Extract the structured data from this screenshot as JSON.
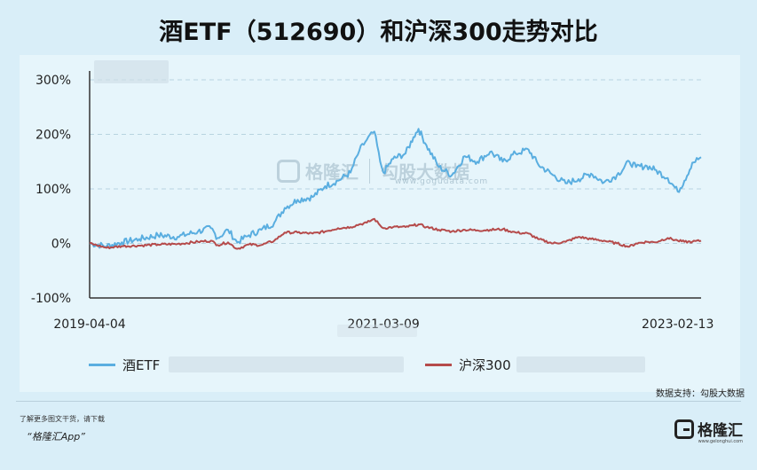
{
  "title": "酒ETF（512690）和沪深300走势对比",
  "source": "数据支持：勾股大数据",
  "footer_line1": "了解更多图文干货，请下载",
  "footer_line2": "“格隆汇App”",
  "logo_text": "格隆汇",
  "logo_sub": "www.gelonghui.com",
  "watermark": {
    "brand": "格隆汇",
    "brand2": "勾股大数据",
    "url": "www.gogudata.com"
  },
  "colors": {
    "etf": "#5aaee0",
    "hs300": "#b54b4b",
    "grid": "#b8d4e0"
  },
  "chart_data": {
    "type": "line",
    "x_ticks": [
      "2019-04-04",
      "2021-03-09",
      "2023-02-13"
    ],
    "y_ticks": [
      "300%",
      "200%",
      "100%",
      "0%",
      "-100%"
    ],
    "ylim": [
      -100,
      300
    ],
    "xlim": [
      "2019-04-04",
      "2023-04-10"
    ],
    "grid": true,
    "legend_position": "bottom",
    "series": [
      {
        "name": "酒ETF",
        "points": [
          [
            "2019-04-04",
            0
          ],
          [
            "2019-05-15",
            -5
          ],
          [
            "2019-06-20",
            2
          ],
          [
            "2019-08-01",
            8
          ],
          [
            "2019-09-15",
            15
          ],
          [
            "2019-11-01",
            12
          ],
          [
            "2019-12-20",
            22
          ],
          [
            "2020-01-20",
            28
          ],
          [
            "2020-02-05",
            10
          ],
          [
            "2020-03-01",
            25
          ],
          [
            "2020-03-23",
            2
          ],
          [
            "2020-04-20",
            15
          ],
          [
            "2020-05-20",
            25
          ],
          [
            "2020-06-20",
            38
          ],
          [
            "2020-07-15",
            65
          ],
          [
            "2020-08-15",
            80
          ],
          [
            "2020-09-20",
            85
          ],
          [
            "2020-10-20",
            105
          ],
          [
            "2020-11-20",
            115
          ],
          [
            "2020-12-20",
            130
          ],
          [
            "2021-01-10",
            170
          ],
          [
            "2021-01-28",
            190
          ],
          [
            "2021-02-15",
            205
          ],
          [
            "2021-03-01",
            150
          ],
          [
            "2021-03-09",
            130
          ],
          [
            "2021-04-01",
            155
          ],
          [
            "2021-05-01",
            165
          ],
          [
            "2021-05-20",
            195
          ],
          [
            "2021-06-01",
            210
          ],
          [
            "2021-06-20",
            180
          ],
          [
            "2021-07-20",
            140
          ],
          [
            "2021-08-20",
            125
          ],
          [
            "2021-09-20",
            160
          ],
          [
            "2021-10-20",
            150
          ],
          [
            "2021-11-20",
            168
          ],
          [
            "2021-12-20",
            150
          ],
          [
            "2022-01-20",
            165
          ],
          [
            "2022-02-20",
            172
          ],
          [
            "2022-03-15",
            145
          ],
          [
            "2022-04-20",
            125
          ],
          [
            "2022-05-20",
            110
          ],
          [
            "2022-06-20",
            118
          ],
          [
            "2022-07-20",
            128
          ],
          [
            "2022-08-20",
            112
          ],
          [
            "2022-09-20",
            125
          ],
          [
            "2022-10-20",
            150
          ],
          [
            "2022-11-05",
            140
          ],
          [
            "2022-12-01",
            142
          ],
          [
            "2022-12-20",
            135
          ],
          [
            "2023-01-20",
            120
          ],
          [
            "2023-02-13",
            95
          ],
          [
            "2023-03-01",
            115
          ],
          [
            "2023-03-20",
            148
          ],
          [
            "2023-04-10",
            158
          ]
        ]
      },
      {
        "name": "沪深300",
        "points": [
          [
            "2019-04-04",
            0
          ],
          [
            "2019-05-15",
            -8
          ],
          [
            "2019-06-20",
            -5
          ],
          [
            "2019-08-01",
            -4
          ],
          [
            "2019-09-15",
            -2
          ],
          [
            "2019-11-01",
            -1
          ],
          [
            "2019-12-20",
            3
          ],
          [
            "2020-01-20",
            5
          ],
          [
            "2020-02-05",
            -3
          ],
          [
            "2020-03-01",
            2
          ],
          [
            "2020-03-23",
            -10
          ],
          [
            "2020-04-20",
            -2
          ],
          [
            "2020-05-20",
            -3
          ],
          [
            "2020-06-20",
            5
          ],
          [
            "2020-07-15",
            20
          ],
          [
            "2020-08-15",
            20
          ],
          [
            "2020-09-20",
            18
          ],
          [
            "2020-10-20",
            22
          ],
          [
            "2020-11-20",
            28
          ],
          [
            "2020-12-20",
            30
          ],
          [
            "2021-01-10",
            35
          ],
          [
            "2021-01-28",
            38
          ],
          [
            "2021-02-15",
            45
          ],
          [
            "2021-03-01",
            33
          ],
          [
            "2021-03-09",
            28
          ],
          [
            "2021-04-01",
            30
          ],
          [
            "2021-05-01",
            30
          ],
          [
            "2021-05-20",
            33
          ],
          [
            "2021-06-01",
            35
          ],
          [
            "2021-06-20",
            30
          ],
          [
            "2021-07-20",
            25
          ],
          [
            "2021-08-20",
            22
          ],
          [
            "2021-09-20",
            25
          ],
          [
            "2021-10-20",
            24
          ],
          [
            "2021-11-20",
            25
          ],
          [
            "2021-12-20",
            26
          ],
          [
            "2022-01-20",
            20
          ],
          [
            "2022-02-20",
            18
          ],
          [
            "2022-03-15",
            8
          ],
          [
            "2022-04-20",
            0
          ],
          [
            "2022-05-20",
            3
          ],
          [
            "2022-06-20",
            12
          ],
          [
            "2022-07-20",
            8
          ],
          [
            "2022-08-20",
            5
          ],
          [
            "2022-09-20",
            0
          ],
          [
            "2022-10-20",
            -6
          ],
          [
            "2022-11-05",
            0
          ],
          [
            "2022-12-01",
            3
          ],
          [
            "2022-12-20",
            2
          ],
          [
            "2023-01-20",
            10
          ],
          [
            "2023-02-13",
            5
          ],
          [
            "2023-03-01",
            3
          ],
          [
            "2023-03-20",
            3
          ],
          [
            "2023-04-10",
            5
          ]
        ]
      }
    ]
  }
}
